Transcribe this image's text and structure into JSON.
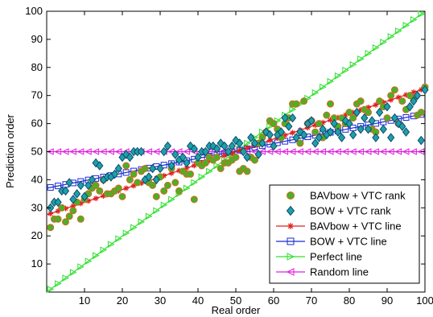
{
  "chart_data": {
    "type": "line",
    "xlabel": "Real order",
    "ylabel": "Prediction order",
    "xlim": [
      0,
      100
    ],
    "ylim": [
      0,
      100
    ],
    "xticks": [
      10,
      20,
      30,
      40,
      50,
      60,
      70,
      80,
      90,
      100
    ],
    "yticks": [
      10,
      20,
      30,
      40,
      50,
      60,
      70,
      80,
      90,
      100
    ],
    "grid": false,
    "legend_position": "bottom-right",
    "series": [
      {
        "name": "BAVbow + VTC rank",
        "kind": "scatter",
        "marker": "circle",
        "color": "#4caf2a",
        "stroke": "#d26a1a",
        "x": [
          1,
          2,
          3,
          4,
          5,
          6,
          7,
          8,
          9,
          10,
          11,
          12,
          13,
          14,
          15,
          16,
          17,
          18,
          19,
          20,
          21,
          22,
          23,
          24,
          25,
          26,
          27,
          28,
          29,
          30,
          31,
          32,
          33,
          34,
          35,
          36,
          37,
          38,
          39,
          40,
          41,
          42,
          43,
          44,
          45,
          46,
          47,
          48,
          49,
          50,
          51,
          52,
          53,
          54,
          55,
          56,
          57,
          58,
          59,
          60,
          61,
          62,
          63,
          64,
          65,
          66,
          67,
          68,
          69,
          70,
          71,
          72,
          73,
          74,
          75,
          76,
          77,
          78,
          79,
          80,
          81,
          82,
          83,
          84,
          85,
          86,
          87,
          88,
          89,
          90,
          91,
          92,
          93,
          94,
          95,
          96,
          97,
          98,
          99,
          100
        ],
        "y": [
          23,
          26,
          26,
          30,
          25,
          27,
          29,
          32,
          26,
          33,
          35,
          37,
          38,
          36,
          40,
          35,
          35,
          36,
          37,
          34,
          45,
          40,
          42,
          39,
          43,
          44,
          39,
          38,
          34,
          41,
          36,
          38,
          44,
          39,
          36,
          43,
          42,
          42,
          33,
          46,
          45,
          46,
          48,
          47,
          48,
          44,
          46,
          46,
          47,
          48,
          43,
          44,
          43,
          48,
          47,
          53,
          55,
          57,
          61,
          60,
          58,
          55,
          60,
          62,
          67,
          67,
          53,
          68,
          60,
          61,
          57,
          60,
          55,
          63,
          67,
          62,
          59,
          62,
          60,
          64,
          62,
          67,
          68,
          65,
          64,
          58,
          57,
          68,
          66,
          62,
          70,
          72,
          60,
          68,
          65,
          70,
          69,
          63,
          64,
          73
        ]
      },
      {
        "name": "BOW + VTC rank",
        "kind": "scatter",
        "marker": "diamond",
        "color": "#1fa0a8",
        "stroke": "#0a4d6e",
        "x": [
          1,
          2,
          3,
          4,
          5,
          6,
          7,
          8,
          9,
          10,
          11,
          12,
          13,
          14,
          15,
          16,
          17,
          18,
          19,
          20,
          21,
          22,
          23,
          24,
          25,
          26,
          27,
          28,
          29,
          30,
          31,
          32,
          33,
          34,
          35,
          36,
          37,
          38,
          39,
          40,
          41,
          42,
          43,
          44,
          45,
          46,
          47,
          48,
          49,
          50,
          51,
          52,
          53,
          54,
          55,
          56,
          57,
          58,
          59,
          60,
          61,
          62,
          63,
          64,
          65,
          66,
          67,
          68,
          69,
          70,
          71,
          72,
          73,
          74,
          75,
          76,
          77,
          78,
          79,
          80,
          81,
          82,
          83,
          84,
          85,
          86,
          87,
          88,
          89,
          90,
          91,
          92,
          93,
          94,
          95,
          96,
          97,
          98,
          99,
          100
        ],
        "y": [
          30,
          32,
          32,
          36,
          36,
          39,
          33,
          35,
          38,
          34,
          38,
          40,
          46,
          45,
          40,
          41,
          41,
          42,
          44,
          48,
          49,
          48,
          50,
          50,
          50,
          40,
          41,
          44,
          40,
          44,
          50,
          52,
          45,
          49,
          47,
          48,
          46,
          52,
          51,
          48,
          50,
          50,
          52,
          52,
          51,
          53,
          52,
          50,
          52,
          54,
          53,
          50,
          48,
          55,
          53,
          49,
          53,
          57,
          56,
          52,
          56,
          57,
          62,
          59,
          62,
          55,
          57,
          56,
          60,
          61,
          53,
          55,
          58,
          56,
          57,
          60,
          57,
          55,
          61,
          60,
          56,
          64,
          58,
          62,
          58,
          61,
          55,
          64,
          58,
          66,
          55,
          62,
          60,
          59,
          57,
          66,
          68,
          70,
          54,
          72
        ]
      },
      {
        "name": "BAVbow + VTC line",
        "kind": "line",
        "marker": "star",
        "color": "#e02020",
        "y0": 27.5,
        "y100": 72.5
      },
      {
        "name": "BOW + VTC line",
        "kind": "line",
        "marker": "square",
        "color": "#1a2ad6",
        "y0": 37,
        "y100": 63.5
      },
      {
        "name": "Perfect line",
        "kind": "line",
        "marker": "triangle-right",
        "color": "#2ee02e",
        "y0": 0,
        "y100": 100
      },
      {
        "name": "Random line",
        "kind": "line",
        "marker": "triangle-left",
        "color": "#e020e0",
        "y0": 50,
        "y100": 50
      }
    ]
  }
}
